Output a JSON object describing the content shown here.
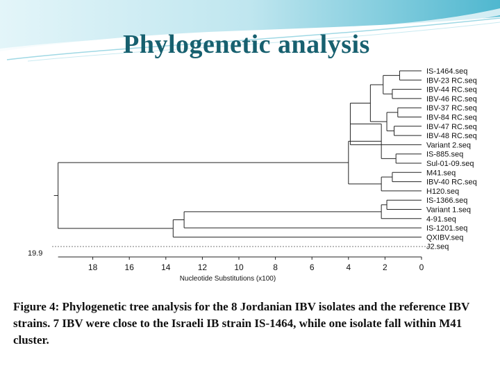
{
  "slide": {
    "title": "Phylogenetic analysis",
    "caption": "Figure 4: Phylogenetic tree analysis for the 8 Jordanian IBV isolates and the reference IBV strains. 7 IBV were close to the Israeli IB strain IS-1464, while one isolate  fall within M41 cluster."
  },
  "chart_data": {
    "type": "dendrogram",
    "xlabel": "Nucleotide Substitutions (x100)",
    "xlim": [
      19.9,
      0
    ],
    "xticks": [
      18,
      16,
      14,
      12,
      10,
      8,
      6,
      4,
      2,
      0
    ],
    "xticklabels": [
      "18",
      "16",
      "14",
      "12",
      "10",
      "8",
      "6",
      "4",
      "2",
      "0"
    ],
    "root_label": "19.9",
    "leaves": [
      "IS-1464.seq",
      "IBV-23 RC.seq",
      "IBV-44 RC.seq",
      "IBV-46 RC.seq",
      "IBV-37 RC.seq",
      "IBV-84 RC.seq",
      "IBV-47 RC.seq",
      "IBV-48 RC.seq",
      "Variant 2.seq",
      "IS-885.seq",
      "Sul-01-09.seq",
      "M41.seq",
      "IBV-40 RC.seq",
      "H120.seq",
      "IS-1366.seq",
      "Variant 1.seq",
      "4-91.seq",
      "IS-1201.seq",
      "QXIBV.seq",
      "J2.seq"
    ],
    "nodes": [
      {
        "id": "n1",
        "height": 1.2,
        "children": [
          "L0",
          "L1"
        ]
      },
      {
        "id": "n2",
        "height": 1.6,
        "children": [
          "L2",
          "L3"
        ]
      },
      {
        "id": "n3",
        "height": 2.1,
        "children": [
          "n1",
          "n2"
        ]
      },
      {
        "id": "n4",
        "height": 1.3,
        "children": [
          "L4",
          "L5"
        ]
      },
      {
        "id": "n5",
        "height": 1.5,
        "children": [
          "L6",
          "L7"
        ]
      },
      {
        "id": "n6",
        "height": 1.9,
        "children": [
          "n4",
          "n5"
        ]
      },
      {
        "id": "n7",
        "height": 2.8,
        "children": [
          "n3",
          "n6"
        ]
      },
      {
        "id": "n8",
        "height": 3.9,
        "children": [
          "n7",
          "L8"
        ]
      },
      {
        "id": "n9",
        "height": 1.4,
        "children": [
          "L9",
          "L10"
        ]
      },
      {
        "id": "n10",
        "height": 2.2,
        "children": [
          "n8",
          "n9"
        ]
      },
      {
        "id": "n11",
        "height": 1.6,
        "children": [
          "L11",
          "L12"
        ]
      },
      {
        "id": "n12",
        "height": 2.2,
        "children": [
          "n11",
          "L13"
        ]
      },
      {
        "id": "n13",
        "height": 4.0,
        "children": [
          "n10",
          "n12"
        ]
      },
      {
        "id": "n14",
        "height": 1.9,
        "children": [
          "L14",
          "L15"
        ]
      },
      {
        "id": "n15",
        "height": 2.2,
        "children": [
          "n14",
          "L16"
        ]
      },
      {
        "id": "n16",
        "height": 13.0,
        "children": [
          "n15",
          "L17"
        ]
      },
      {
        "id": "n17",
        "height": 13.6,
        "children": [
          "n16",
          "L18"
        ]
      },
      {
        "id": "n18",
        "height": 19.9,
        "children": [
          "n13",
          "n17"
        ]
      }
    ]
  }
}
